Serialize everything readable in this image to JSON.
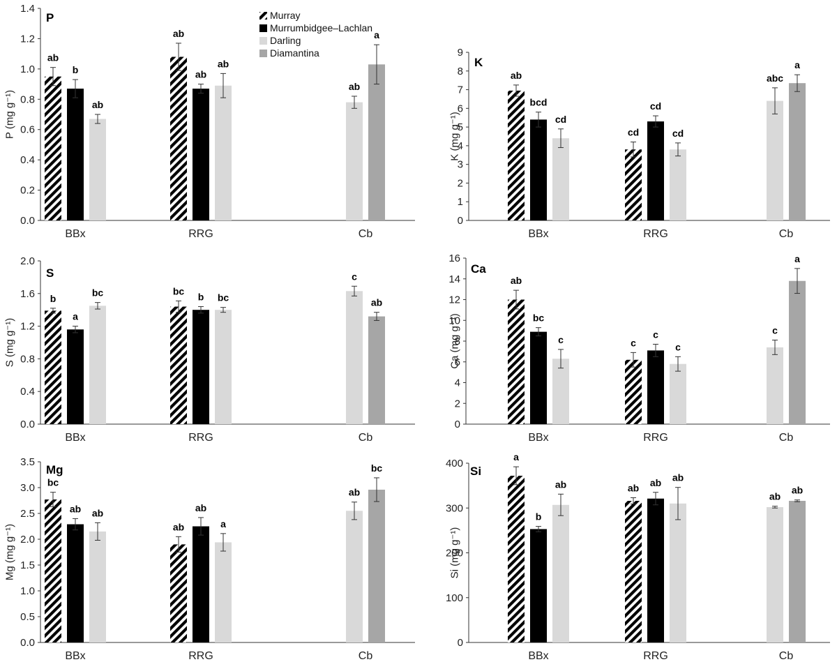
{
  "colors": {
    "Murray": "hatch-black",
    "Murrumbidgee–Lachlan": "#000000",
    "Darling": "#d9d9d9",
    "Diamantina": "#a6a6a6"
  },
  "legend": {
    "placement": "top-center",
    "entries": [
      "Murray",
      "Murrumbidgee–Lachlan",
      "Darling",
      "Diamantina"
    ]
  },
  "chart_data": [
    {
      "type": "bar",
      "title": "P",
      "ylabel": "P (mg g⁻¹)",
      "categories": [
        "BBx",
        "RRG",
        "Cb"
      ],
      "ylim": [
        0,
        1.4
      ],
      "yticks": [
        "0.0",
        "0.2",
        "0.4",
        "0.6",
        "0.8",
        "1.0",
        "1.2",
        "1.4"
      ],
      "series": [
        {
          "name": "Murray",
          "values": [
            0.95,
            1.08,
            null
          ],
          "errors": [
            0.06,
            0.09,
            null
          ],
          "labels": [
            "ab",
            "ab",
            null
          ]
        },
        {
          "name": "Murrumbidgee–Lachlan",
          "values": [
            0.87,
            0.87,
            null
          ],
          "errors": [
            0.06,
            0.03,
            null
          ],
          "labels": [
            "b",
            "ab",
            null
          ]
        },
        {
          "name": "Darling",
          "values": [
            0.67,
            0.89,
            0.78
          ],
          "errors": [
            0.03,
            0.08,
            0.04
          ],
          "labels": [
            "ab",
            "ab",
            "ab"
          ]
        },
        {
          "name": "Diamantina",
          "values": [
            null,
            null,
            1.03
          ],
          "errors": [
            null,
            null,
            0.13
          ],
          "labels": [
            null,
            null,
            "a"
          ]
        }
      ]
    },
    {
      "type": "bar",
      "title": "K",
      "ylabel": "K (mg g⁻¹)",
      "categories": [
        "BBx",
        "RRG",
        "Cb"
      ],
      "ylim": [
        0,
        9
      ],
      "yticks": [
        "0",
        "1",
        "2",
        "3",
        "4",
        "5",
        "6",
        "7",
        "8",
        "9"
      ],
      "series": [
        {
          "name": "Murray",
          "values": [
            6.95,
            3.8,
            null
          ],
          "errors": [
            0.3,
            0.4,
            null
          ],
          "labels": [
            "ab",
            "cd",
            null
          ]
        },
        {
          "name": "Murrumbidgee–Lachlan",
          "values": [
            5.4,
            5.3,
            null
          ],
          "errors": [
            0.4,
            0.3,
            null
          ],
          "labels": [
            "bcd",
            "cd",
            null
          ]
        },
        {
          "name": "Darling",
          "values": [
            4.4,
            3.8,
            6.4
          ],
          "errors": [
            0.5,
            0.35,
            0.7
          ],
          "labels": [
            "cd",
            "cd",
            "abc"
          ]
        },
        {
          "name": "Diamantina",
          "values": [
            null,
            null,
            7.35
          ],
          "errors": [
            null,
            null,
            0.45
          ],
          "labels": [
            null,
            null,
            "a"
          ]
        }
      ]
    },
    {
      "type": "bar",
      "title": "S",
      "ylabel": "S (mg g⁻¹)",
      "categories": [
        "BBx",
        "RRG",
        "Cb"
      ],
      "ylim": [
        0,
        2.0
      ],
      "yticks": [
        "0.0",
        "0.4",
        "0.8",
        "1.2",
        "1.6",
        "2.0"
      ],
      "series": [
        {
          "name": "Murray",
          "values": [
            1.39,
            1.44,
            null
          ],
          "errors": [
            0.03,
            0.07,
            null
          ],
          "labels": [
            "b",
            "bc",
            null
          ]
        },
        {
          "name": "Murrumbidgee–Lachlan",
          "values": [
            1.16,
            1.4,
            null
          ],
          "errors": [
            0.04,
            0.04,
            null
          ],
          "labels": [
            "a",
            "b",
            null
          ]
        },
        {
          "name": "Darling",
          "values": [
            1.45,
            1.4,
            1.63
          ],
          "errors": [
            0.04,
            0.03,
            0.06
          ],
          "labels": [
            "bc",
            "bc",
            "c"
          ]
        },
        {
          "name": "Diamantina",
          "values": [
            null,
            null,
            1.32
          ],
          "errors": [
            null,
            null,
            0.05
          ],
          "labels": [
            null,
            null,
            "ab"
          ]
        }
      ]
    },
    {
      "type": "bar",
      "title": "Ca",
      "ylabel": "Ca (mg g⁻¹)",
      "categories": [
        "BBx",
        "RRG",
        "Cb"
      ],
      "ylim": [
        0,
        16
      ],
      "yticks": [
        "0",
        "2",
        "4",
        "6",
        "8",
        "10",
        "12",
        "14",
        "16"
      ],
      "series": [
        {
          "name": "Murray",
          "values": [
            12.0,
            6.2,
            null
          ],
          "errors": [
            0.9,
            0.7,
            null
          ],
          "labels": [
            "ab",
            "c",
            null
          ]
        },
        {
          "name": "Murrumbidgee–Lachlan",
          "values": [
            8.9,
            7.1,
            null
          ],
          "errors": [
            0.4,
            0.6,
            null
          ],
          "labels": [
            "bc",
            "c",
            null
          ]
        },
        {
          "name": "Darling",
          "values": [
            6.3,
            5.8,
            7.4
          ],
          "errors": [
            0.9,
            0.7,
            0.7
          ],
          "labels": [
            "c",
            "c",
            "c"
          ]
        },
        {
          "name": "Diamantina",
          "values": [
            null,
            null,
            13.8
          ],
          "errors": [
            null,
            null,
            1.2
          ],
          "labels": [
            null,
            null,
            "a"
          ]
        }
      ]
    },
    {
      "type": "bar",
      "title": "Mg",
      "ylabel": "Mg (mg g⁻¹)",
      "categories": [
        "BBx",
        "RRG",
        "Cb"
      ],
      "ylim": [
        0,
        3.5
      ],
      "yticks": [
        "0.0",
        "0.5",
        "1.0",
        "1.5",
        "2.0",
        "2.5",
        "3.0",
        "3.5"
      ],
      "series": [
        {
          "name": "Murray",
          "values": [
            2.77,
            1.9,
            null
          ],
          "errors": [
            0.14,
            0.15,
            null
          ],
          "labels": [
            "bc",
            "ab",
            null
          ]
        },
        {
          "name": "Murrumbidgee–Lachlan",
          "values": [
            2.29,
            2.25,
            null
          ],
          "errors": [
            0.11,
            0.17,
            null
          ],
          "labels": [
            "ab",
            "ab",
            null
          ]
        },
        {
          "name": "Darling",
          "values": [
            2.15,
            1.94,
            2.55
          ],
          "errors": [
            0.17,
            0.17,
            0.17
          ],
          "labels": [
            "ab",
            "a",
            "ab"
          ]
        },
        {
          "name": "Diamantina",
          "values": [
            null,
            null,
            2.96
          ],
          "errors": [
            null,
            null,
            0.23
          ],
          "labels": [
            null,
            null,
            "bc"
          ]
        }
      ]
    },
    {
      "type": "bar",
      "title": "Si",
      "ylabel": "Si (mg g⁻¹)",
      "categories": [
        "BBx",
        "RRG",
        "Cb"
      ],
      "ylim": [
        0,
        400
      ],
      "yticks": [
        "0",
        "100",
        "200",
        "300",
        "400"
      ],
      "series": [
        {
          "name": "Murray",
          "values": [
            372,
            316,
            null
          ],
          "errors": [
            20,
            7,
            null
          ],
          "labels": [
            "a",
            "ab",
            null
          ]
        },
        {
          "name": "Murrumbidgee–Lachlan",
          "values": [
            253,
            321,
            null
          ],
          "errors": [
            6,
            14,
            null
          ],
          "labels": [
            "b",
            "ab",
            null
          ]
        },
        {
          "name": "Darling",
          "values": [
            307,
            310,
            302
          ],
          "errors": [
            24,
            36,
            2
          ],
          "labels": [
            "ab",
            "ab",
            "ab"
          ]
        },
        {
          "name": "Diamantina",
          "values": [
            null,
            null,
            316
          ],
          "errors": [
            null,
            null,
            2
          ],
          "labels": [
            null,
            null,
            "ab"
          ]
        }
      ]
    }
  ]
}
